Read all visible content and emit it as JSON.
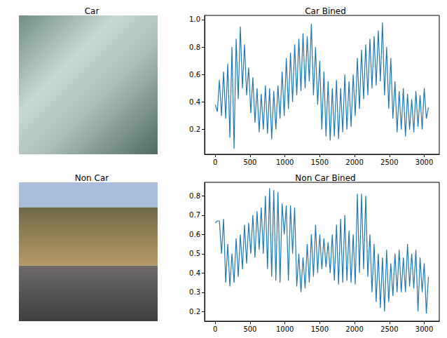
{
  "chart_data": [
    {
      "type": "image",
      "title": "Car"
    },
    {
      "type": "line",
      "title": "Car Bined",
      "color": "#1f77b4",
      "grid": false,
      "xlim": [
        -153,
        3216
      ],
      "xticks": [
        0,
        500,
        1000,
        1500,
        2000,
        2500,
        3000
      ],
      "ylim": [
        0.02,
        1.03
      ],
      "yticks": [
        0.2,
        0.4,
        0.6,
        0.8,
        {
          "value": 1,
          "label": "1.0"
        }
      ],
      "x": [
        0,
        30,
        60,
        90,
        120,
        150,
        180,
        210,
        240,
        270,
        300,
        330,
        360,
        390,
        420,
        450,
        480,
        510,
        540,
        570,
        600,
        630,
        660,
        690,
        720,
        750,
        780,
        810,
        840,
        870,
        900,
        930,
        960,
        990,
        1020,
        1050,
        1080,
        1110,
        1140,
        1170,
        1200,
        1230,
        1260,
        1290,
        1320,
        1350,
        1380,
        1410,
        1440,
        1470,
        1500,
        1530,
        1560,
        1590,
        1620,
        1650,
        1680,
        1710,
        1740,
        1770,
        1800,
        1830,
        1860,
        1890,
        1920,
        1950,
        1980,
        2010,
        2040,
        2070,
        2100,
        2130,
        2160,
        2190,
        2220,
        2250,
        2280,
        2310,
        2340,
        2370,
        2400,
        2430,
        2460,
        2490,
        2520,
        2550,
        2580,
        2610,
        2640,
        2670,
        2700,
        2730,
        2760,
        2790,
        2820,
        2850,
        2880,
        2910,
        2940,
        2970,
        3000,
        3030,
        3060
      ],
      "values": [
        0.38,
        0.33,
        0.56,
        0.3,
        0.62,
        0.28,
        0.68,
        0.14,
        0.8,
        0.06,
        0.86,
        0.42,
        0.95,
        0.5,
        0.82,
        0.45,
        0.65,
        0.32,
        0.58,
        0.25,
        0.5,
        0.18,
        0.46,
        0.2,
        0.52,
        0.17,
        0.5,
        0.13,
        0.48,
        0.2,
        0.52,
        0.28,
        0.62,
        0.3,
        0.72,
        0.35,
        0.76,
        0.4,
        0.82,
        0.45,
        0.86,
        0.48,
        0.9,
        0.5,
        0.88,
        0.55,
        0.97,
        0.45,
        0.8,
        0.38,
        0.7,
        0.2,
        0.62,
        0.15,
        0.55,
        0.12,
        0.5,
        0.15,
        0.56,
        0.13,
        0.5,
        0.18,
        0.6,
        0.2,
        0.55,
        0.22,
        0.6,
        0.3,
        0.72,
        0.35,
        0.78,
        0.42,
        0.82,
        0.45,
        0.86,
        0.5,
        0.88,
        0.52,
        0.92,
        0.55,
        0.98,
        0.45,
        0.8,
        0.35,
        0.72,
        0.28,
        0.55,
        0.18,
        0.48,
        0.2,
        0.5,
        0.15,
        0.46,
        0.2,
        0.42,
        0.18,
        0.48,
        0.22,
        0.45,
        0.2,
        0.5,
        0.28,
        0.36
      ]
    },
    {
      "type": "image",
      "title": "Non Car"
    },
    {
      "type": "line",
      "title": "Non Car Bined",
      "color": "#1f77b4",
      "grid": false,
      "xlim": [
        -153,
        3216
      ],
      "xticks": [
        0,
        500,
        1000,
        1500,
        2000,
        2500,
        3000
      ],
      "ylim": [
        0.15,
        0.87
      ],
      "yticks": [
        0.2,
        0.3,
        0.4,
        0.5,
        0.6,
        0.7,
        0.8
      ],
      "x": [
        0,
        30,
        60,
        90,
        120,
        150,
        180,
        210,
        240,
        270,
        300,
        330,
        360,
        390,
        420,
        450,
        480,
        510,
        540,
        570,
        600,
        630,
        660,
        690,
        720,
        750,
        780,
        810,
        840,
        870,
        900,
        930,
        960,
        990,
        1020,
        1050,
        1080,
        1110,
        1140,
        1170,
        1200,
        1230,
        1260,
        1290,
        1320,
        1350,
        1380,
        1410,
        1440,
        1470,
        1500,
        1530,
        1560,
        1590,
        1620,
        1650,
        1680,
        1710,
        1740,
        1770,
        1800,
        1830,
        1860,
        1890,
        1920,
        1950,
        1980,
        2010,
        2040,
        2070,
        2100,
        2130,
        2160,
        2190,
        2220,
        2250,
        2280,
        2310,
        2340,
        2370,
        2400,
        2430,
        2460,
        2490,
        2520,
        2550,
        2580,
        2610,
        2640,
        2670,
        2700,
        2730,
        2760,
        2790,
        2820,
        2850,
        2880,
        2910,
        2940,
        2970,
        3000,
        3030,
        3060
      ],
      "values": [
        0.66,
        0.67,
        0.67,
        0.5,
        0.68,
        0.35,
        0.55,
        0.33,
        0.5,
        0.35,
        0.58,
        0.38,
        0.6,
        0.42,
        0.65,
        0.45,
        0.66,
        0.5,
        0.7,
        0.48,
        0.72,
        0.52,
        0.74,
        0.5,
        0.8,
        0.42,
        0.84,
        0.38,
        0.83,
        0.36,
        0.82,
        0.35,
        0.76,
        0.6,
        0.75,
        0.36,
        0.75,
        0.5,
        0.74,
        0.33,
        0.5,
        0.3,
        0.48,
        0.32,
        0.55,
        0.35,
        0.6,
        0.38,
        0.65,
        0.4,
        0.6,
        0.42,
        0.58,
        0.43,
        0.56,
        0.4,
        0.6,
        0.36,
        0.65,
        0.34,
        0.68,
        0.35,
        0.7,
        0.36,
        0.62,
        0.35,
        0.6,
        0.34,
        0.81,
        0.4,
        0.81,
        0.42,
        0.8,
        0.38,
        0.6,
        0.3,
        0.55,
        0.25,
        0.5,
        0.22,
        0.48,
        0.2,
        0.52,
        0.25,
        0.45,
        0.28,
        0.5,
        0.3,
        0.52,
        0.3,
        0.48,
        0.3,
        0.55,
        0.33,
        0.5,
        0.32,
        0.52,
        0.2,
        0.48,
        0.3,
        0.45,
        0.19,
        0.38
      ]
    }
  ]
}
